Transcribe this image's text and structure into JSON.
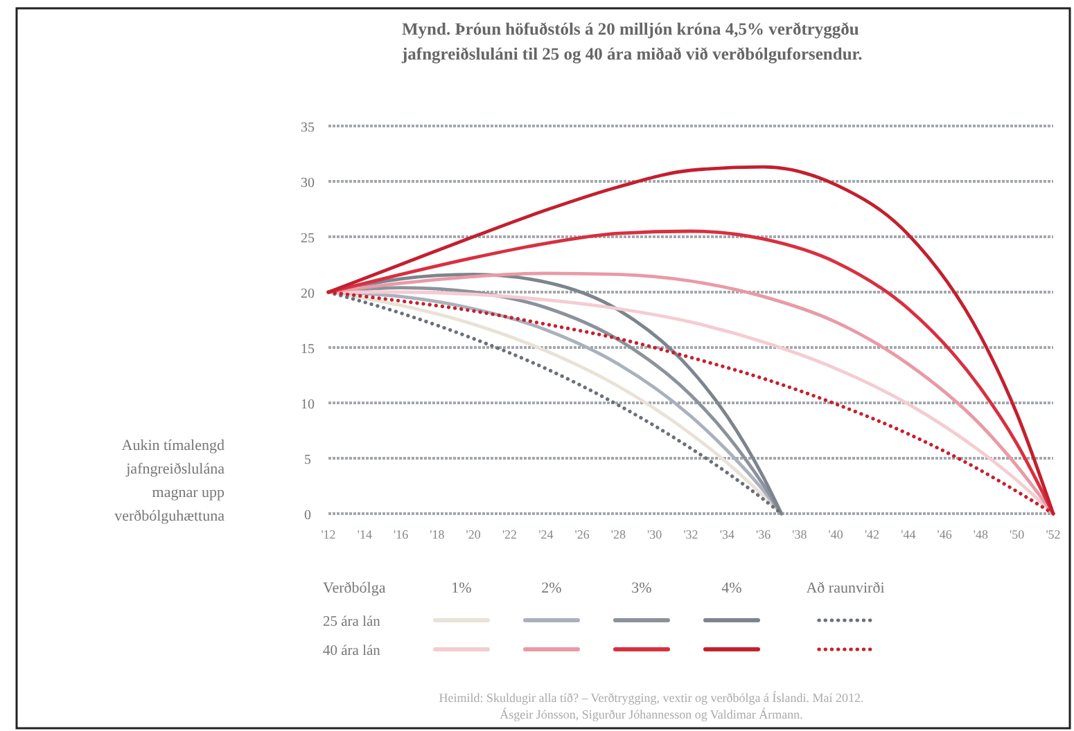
{
  "chart_data": {
    "type": "line",
    "title": "Mynd. Þróun höfuðstóls á 20 milljón króna 4,5% verðtryggðu jafngreiðsluláni til 25 og 40 ára miðað við verðbólguforsendur.",
    "ylabel": "Aukin tímalengd jafngreiðslulána magnar upp verðbólguhættuna",
    "legend_title": "Verðbólga",
    "annotations": [
      "25 ára lán",
      "40 ára lán",
      "1%",
      "2%",
      "3%",
      "4%",
      "Að raunvirði",
      "Heimild: Skuldugir alla tíð? – Verðtrygging, vextir og verðbólga á Íslandi. Maí 2012. Ásgeir Jónsson, Sigurður Jóhannesson og Valdimar Ármann."
    ],
    "xlim": [
      2012,
      2052
    ],
    "xticks": [
      {
        "value": 2012,
        "label": "'12"
      },
      {
        "value": 2014,
        "label": "'14"
      },
      {
        "value": 2016,
        "label": "'16"
      },
      {
        "value": 2018,
        "label": "'18"
      },
      {
        "value": 2020,
        "label": "'20"
      },
      {
        "value": 2022,
        "label": "'22"
      },
      {
        "value": 2024,
        "label": "'24"
      },
      {
        "value": 2026,
        "label": "'26"
      },
      {
        "value": 2028,
        "label": "'28"
      },
      {
        "value": 2030,
        "label": "'30"
      },
      {
        "value": 2032,
        "label": "'32"
      },
      {
        "value": 2034,
        "label": "'34"
      },
      {
        "value": 2036,
        "label": "'36"
      },
      {
        "value": 2038,
        "label": "'38"
      },
      {
        "value": 2040,
        "label": "'40"
      },
      {
        "value": 2042,
        "label": "'42"
      },
      {
        "value": 2044,
        "label": "'44"
      },
      {
        "value": 2046,
        "label": "'46"
      },
      {
        "value": 2048,
        "label": "'48"
      },
      {
        "value": 2050,
        "label": "'50"
      },
      {
        "value": 2052,
        "label": "'52"
      }
    ],
    "ylim": [
      0,
      35
    ],
    "yticks": [
      0,
      5,
      10,
      15,
      20,
      25,
      30,
      35
    ],
    "grid": "y",
    "marker": "none",
    "series": [
      {
        "color": "#e9e2d6",
        "x": [
          2012,
          2016,
          2020,
          2024,
          2028,
          2032,
          2034,
          2036,
          2037
        ],
        "values": [
          20,
          18.8,
          17.1,
          14.7,
          11.5,
          7.2,
          4.6,
          1.6,
          0
        ]
      },
      {
        "color": "#aab1bd",
        "x": [
          2012,
          2016,
          2020,
          2024,
          2028,
          2032,
          2034,
          2036,
          2037
        ],
        "values": [
          20,
          19.6,
          18.5,
          16.6,
          13.5,
          8.8,
          5.7,
          2.1,
          0
        ]
      },
      {
        "color": "#8c929b",
        "x": [
          2012,
          2016,
          2020,
          2024,
          2028,
          2032,
          2034,
          2036,
          2037
        ],
        "values": [
          20,
          20.4,
          20,
          18.6,
          15.7,
          10.7,
          7.1,
          2.6,
          0
        ]
      },
      {
        "color": "#7d848e",
        "x": [
          2012,
          2016,
          2020,
          2024,
          2028,
          2032,
          2034,
          2036,
          2037
        ],
        "values": [
          20,
          21.2,
          21.6,
          20.9,
          18.4,
          13,
          8.8,
          3.3,
          0
        ]
      },
      {
        "color": "#6b7079",
        "line_style": "dotted",
        "x": [
          2012,
          2016,
          2020,
          2024,
          2028,
          2032,
          2034,
          2036,
          2037
        ],
        "values": [
          20,
          18.1,
          15.8,
          13.1,
          9.8,
          5.9,
          3.7,
          1.3,
          0
        ]
      },
      {
        "color": "#f4ccd2",
        "x": [
          2012,
          2016,
          2020,
          2024,
          2028,
          2032,
          2036,
          2040,
          2044,
          2048,
          2050,
          2052
        ],
        "values": [
          20,
          20,
          19.8,
          19.3,
          18.5,
          17.3,
          15.5,
          13.1,
          9.9,
          5.6,
          3,
          0
        ]
      },
      {
        "color": "#e99aa6",
        "x": [
          2012,
          2016,
          2020,
          2024,
          2028,
          2032,
          2036,
          2040,
          2044,
          2048,
          2050,
          2052
        ],
        "values": [
          20,
          20.8,
          21.4,
          21.7,
          21.6,
          21,
          19.6,
          17.3,
          13.5,
          8,
          4.3,
          0
        ]
      },
      {
        "color": "#d8303f",
        "x": [
          2012,
          2016,
          2020,
          2024,
          2028,
          2032,
          2036,
          2040,
          2044,
          2048,
          2050,
          2052
        ],
        "values": [
          20,
          21.6,
          23.1,
          24.4,
          25.3,
          25.5,
          24.8,
          22.7,
          18.5,
          11.3,
          6.3,
          0
        ]
      },
      {
        "color": "#c41f2e",
        "x": [
          2012,
          2016,
          2020,
          2024,
          2028,
          2032,
          2036,
          2040,
          2044,
          2048,
          2050,
          2052
        ],
        "values": [
          20,
          22.5,
          25,
          27.4,
          29.5,
          31,
          31.3,
          29.7,
          25.2,
          16,
          9,
          0
        ]
      },
      {
        "color": "#c8202e",
        "line_style": "dotted",
        "x": [
          2012,
          2016,
          2020,
          2024,
          2028,
          2032,
          2036,
          2040,
          2044,
          2048,
          2050,
          2052
        ],
        "values": [
          20,
          19.2,
          18.3,
          17.1,
          15.8,
          14.1,
          12.2,
          9.9,
          7.2,
          3.9,
          2,
          0
        ]
      }
    ]
  }
}
